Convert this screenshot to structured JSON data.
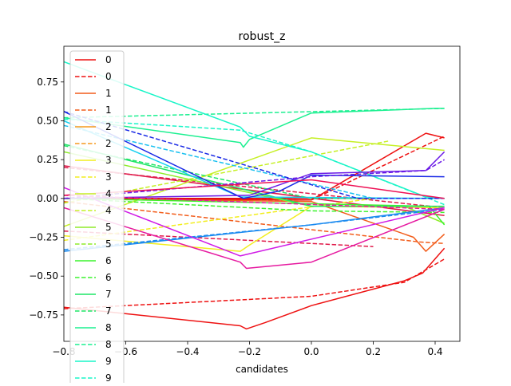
{
  "chart_data": {
    "type": "line",
    "title": "robust_z",
    "xlabel": "candidates",
    "ylabel": "",
    "xlim": [
      -0.8,
      0.48
    ],
    "ylim": [
      -0.92,
      0.98
    ],
    "xticks": [
      -0.6,
      -0.4,
      -0.2,
      0.0,
      0.2,
      0.4
    ],
    "xtick_labels": [
      "−0.6",
      "−0.4",
      "−0.2",
      "0.0",
      "0.2",
      "0.4"
    ],
    "xtick_left_partial": "−0.8",
    "yticks": [
      -0.75,
      -0.5,
      -0.25,
      0.0,
      0.25,
      0.5,
      0.75
    ],
    "ytick_labels": [
      "−0.75",
      "−0.50",
      "−0.25",
      "0.00",
      "0.25",
      "0.50",
      "0.75"
    ],
    "grid": false,
    "legend_position": "top-left",
    "legend": [
      {
        "label": "0",
        "color": "#ee1111",
        "dash": "solid"
      },
      {
        "label": "0",
        "color": "#ee1111",
        "dash": "dashed"
      },
      {
        "label": "1",
        "color": "#f25c1a",
        "dash": "solid"
      },
      {
        "label": "1",
        "color": "#f25c1a",
        "dash": "dashed"
      },
      {
        "label": "2",
        "color": "#f59a1e",
        "dash": "solid"
      },
      {
        "label": "2",
        "color": "#f59a1e",
        "dash": "dashed"
      },
      {
        "label": "3",
        "color": "#f2ee1f",
        "dash": "solid"
      },
      {
        "label": "3",
        "color": "#f2ee1f",
        "dash": "dashed"
      },
      {
        "label": "4",
        "color": "#c6f026",
        "dash": "solid"
      },
      {
        "label": "4",
        "color": "#c6f026",
        "dash": "dashed"
      },
      {
        "label": "5",
        "color": "#8fec2a",
        "dash": "solid"
      },
      {
        "label": "5",
        "color": "#8fec2a",
        "dash": "dashed"
      },
      {
        "label": "6",
        "color": "#3cf32e",
        "dash": "solid"
      },
      {
        "label": "6",
        "color": "#3cf32e",
        "dash": "dashed"
      },
      {
        "label": "7",
        "color": "#1fe667",
        "dash": "solid"
      },
      {
        "label": "7",
        "color": "#1fe667",
        "dash": "dashed"
      },
      {
        "label": "8",
        "color": "#1cf091",
        "dash": "solid"
      },
      {
        "label": "8",
        "color": "#1cf091",
        "dash": "dashed"
      },
      {
        "label": "9",
        "color": "#19f5c8",
        "dash": "solid"
      },
      {
        "label": "9",
        "color": "#19f5c8",
        "dash": "dashed"
      }
    ],
    "series": [
      {
        "color": "#ee1111",
        "dash": "solid",
        "x": [
          -0.8,
          -0.23,
          -0.21,
          -0.15,
          0.0,
          0.3,
          0.36,
          0.43
        ],
        "y": [
          -0.7,
          -0.82,
          -0.84,
          -0.8,
          -0.69,
          -0.53,
          -0.48,
          -0.32
        ]
      },
      {
        "color": "#ee1111",
        "dash": "dashed",
        "x": [
          -0.8,
          0.0,
          0.3,
          0.43
        ],
        "y": [
          -0.71,
          -0.63,
          -0.54,
          -0.39
        ]
      },
      {
        "color": "#ee1111",
        "dash": "solid",
        "x": [
          -0.8,
          0.0,
          0.37,
          0.43
        ],
        "y": [
          0.0,
          -0.01,
          0.42,
          0.39
        ]
      },
      {
        "color": "#ee1111",
        "dash": "dashed",
        "x": [
          -0.8,
          0.0,
          0.43
        ],
        "y": [
          0.0,
          -0.01,
          0.4
        ]
      },
      {
        "color": "#f25c1a",
        "dash": "solid",
        "x": [
          -0.8,
          0.0,
          0.33,
          0.37,
          0.43
        ],
        "y": [
          0.0,
          -0.02,
          -0.25,
          -0.34,
          -0.23
        ]
      },
      {
        "color": "#f25c1a",
        "dash": "dashed",
        "x": [
          -0.8,
          0.35,
          0.43
        ],
        "y": [
          -0.02,
          -0.28,
          -0.29
        ]
      },
      {
        "color": "#e01a4a",
        "dash": "solid",
        "x": [
          -0.8,
          0.43
        ],
        "y": [
          0.21,
          -0.11
        ]
      },
      {
        "color": "#e01a4a",
        "dash": "dashed",
        "x": [
          -0.8,
          0.43
        ],
        "y": [
          0.2,
          -0.06
        ]
      },
      {
        "color": "#e01a4a",
        "dash": "dashed",
        "x": [
          -0.8,
          0.2
        ],
        "y": [
          -0.21,
          -0.31
        ]
      },
      {
        "color": "#dd1111",
        "dash": "solid",
        "x": [
          -0.8,
          0.43
        ],
        "y": [
          0.0,
          0.0
        ]
      },
      {
        "color": "#f2ee1f",
        "dash": "solid",
        "x": [
          -0.8,
          -0.23,
          -0.2,
          0.0,
          0.43
        ],
        "y": [
          -0.24,
          -0.34,
          -0.3,
          -0.05,
          -0.06
        ]
      },
      {
        "color": "#f2ee1f",
        "dash": "dashed",
        "x": [
          -0.8,
          0.2
        ],
        "y": [
          -0.27,
          0.0
        ]
      },
      {
        "color": "#c6f026",
        "dash": "solid",
        "x": [
          -0.8,
          0.0,
          0.43
        ],
        "y": [
          -0.18,
          0.39,
          0.31
        ]
      },
      {
        "color": "#c6f026",
        "dash": "dashed",
        "x": [
          -0.8,
          0.25
        ],
        "y": [
          -0.03,
          0.37
        ]
      },
      {
        "color": "#8fec2a",
        "dash": "solid",
        "x": [
          -0.8,
          0.0,
          0.3,
          0.43
        ],
        "y": [
          0.3,
          -0.05,
          -0.05,
          -0.16
        ]
      },
      {
        "color": "#3cf32e",
        "dash": "solid",
        "x": [
          -0.8,
          0.38,
          0.43
        ],
        "y": [
          0.0,
          -0.05,
          -0.17
        ]
      },
      {
        "color": "#3cf32e",
        "dash": "dashed",
        "x": [
          -0.8,
          0.0,
          0.43
        ],
        "y": [
          0.0,
          -0.08,
          -0.09
        ]
      },
      {
        "color": "#1fe667",
        "dash": "solid",
        "x": [
          -0.8,
          0.0,
          0.43
        ],
        "y": [
          0.35,
          -0.05,
          -0.05
        ]
      },
      {
        "color": "#1fe667",
        "dash": "dashed",
        "x": [
          -0.8,
          0.0,
          0.43
        ],
        "y": [
          0.34,
          0.0,
          0.0
        ]
      },
      {
        "color": "#1cf091",
        "dash": "solid",
        "x": [
          -0.8,
          -0.23,
          -0.22,
          -0.2,
          0.0,
          0.4,
          0.43
        ],
        "y": [
          0.52,
          0.36,
          0.33,
          0.38,
          0.55,
          0.58,
          0.58
        ]
      },
      {
        "color": "#1cf091",
        "dash": "dashed",
        "x": [
          -0.8,
          0.43
        ],
        "y": [
          0.52,
          0.58
        ]
      },
      {
        "color": "#19f5c8",
        "dash": "solid",
        "x": [
          -0.8,
          -0.23,
          -0.2,
          0.0,
          0.37,
          0.43
        ],
        "y": [
          0.88,
          0.46,
          0.4,
          0.3,
          0.01,
          0.0
        ]
      },
      {
        "color": "#19f5c8",
        "dash": "dashed",
        "x": [
          -0.8,
          -0.23,
          0.0,
          0.43
        ],
        "y": [
          0.51,
          0.44,
          0.3,
          -0.04
        ]
      },
      {
        "color": "#18d0f0",
        "dash": "solid",
        "x": [
          -0.8,
          -0.23,
          0.43
        ],
        "y": [
          0.5,
          0.01,
          0.0
        ]
      },
      {
        "color": "#18c0f0",
        "dash": "dashed",
        "x": [
          -0.8,
          0.2,
          0.43
        ],
        "y": [
          0.47,
          0.0,
          0.0
        ]
      },
      {
        "color": "#1a8af0",
        "dash": "solid",
        "x": [
          -0.8,
          0.0,
          0.43
        ],
        "y": [
          -0.34,
          -0.17,
          -0.06
        ]
      },
      {
        "color": "#1a8af0",
        "dash": "dashed",
        "x": [
          -0.8,
          0.0,
          0.43
        ],
        "y": [
          -0.33,
          -0.17,
          -0.07
        ]
      },
      {
        "color": "#1a2ae6",
        "dash": "solid",
        "x": [
          -0.8,
          -0.22,
          -0.1,
          0.0,
          0.43
        ],
        "y": [
          0.56,
          0.0,
          0.05,
          0.15,
          0.14
        ]
      },
      {
        "color": "#1a2ae6",
        "dash": "dashed",
        "x": [
          -0.8,
          0.15,
          0.43
        ],
        "y": [
          0.56,
          0.0,
          0.0
        ]
      },
      {
        "color": "#6a1ae6",
        "dash": "solid",
        "x": [
          -0.8,
          -0.2,
          0.0,
          0.37,
          0.43
        ],
        "y": [
          0.0,
          0.02,
          0.16,
          0.18,
          0.3
        ]
      },
      {
        "color": "#6a1ae6",
        "dash": "dashed",
        "x": [
          -0.8,
          0.0,
          0.37,
          0.43
        ],
        "y": [
          0.0,
          0.14,
          0.18,
          0.25
        ]
      },
      {
        "color": "#d01ae6",
        "dash": "solid",
        "x": [
          -0.8,
          -0.23,
          0.43
        ],
        "y": [
          0.07,
          -0.37,
          -0.06
        ]
      },
      {
        "color": "#e61aa0",
        "dash": "solid",
        "x": [
          -0.8,
          -0.23,
          -0.21,
          0.0,
          0.43
        ],
        "y": [
          -0.06,
          -0.41,
          -0.45,
          -0.41,
          -0.07
        ]
      },
      {
        "color": "#e61aa0",
        "dash": "dashed",
        "x": [
          -0.8,
          0.43
        ],
        "y": [
          0.02,
          -0.07
        ]
      },
      {
        "color": "#ee1155",
        "dash": "solid",
        "x": [
          -0.8,
          0.0,
          0.43
        ],
        "y": [
          0.02,
          0.12,
          0.0
        ]
      }
    ]
  }
}
